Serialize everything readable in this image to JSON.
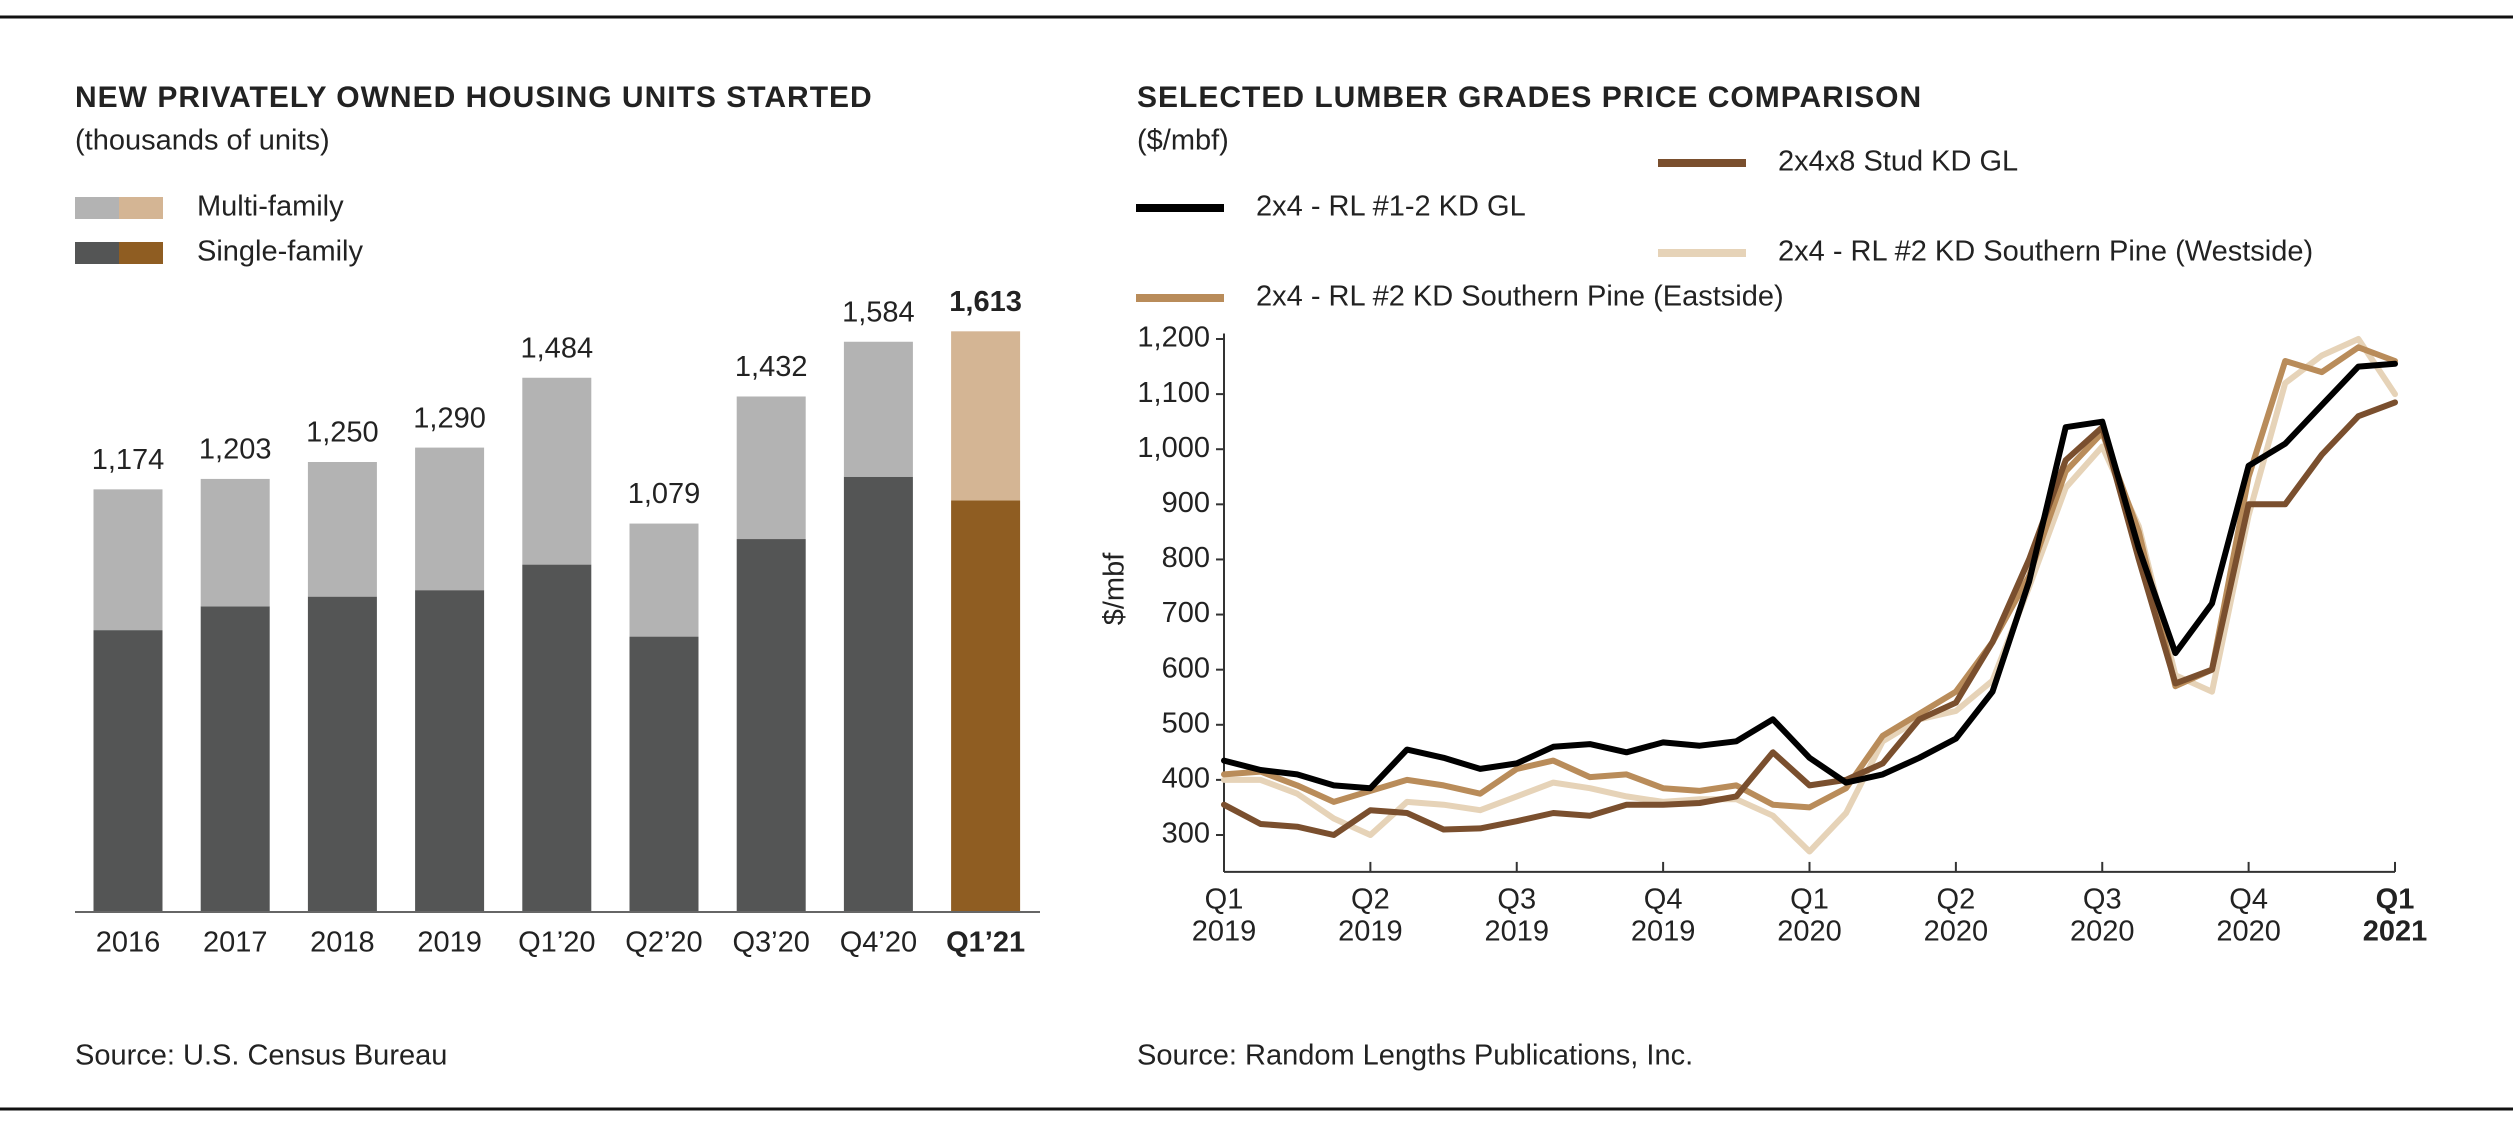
{
  "chart_data": [
    {
      "type": "bar",
      "stacked": true,
      "title": "NEW PRIVATELY OWNED HOUSING UNITS STARTED",
      "subtitle": "(thousands of units)",
      "source": "Source: U.S. Census Bureau",
      "categories": [
        "2016",
        "2017",
        "2018",
        "2019",
        "Q1’20",
        "Q2’20",
        "Q3’20",
        "Q4’20",
        "Q1’21"
      ],
      "highlight_index": 8,
      "series": [
        {
          "name": "Single-family",
          "color": "#545555",
          "highlight_color": "#8f5d22",
          "values": [
            783,
            849,
            876,
            894,
            965,
            765,
            1036,
            1209,
            1143
          ]
        },
        {
          "name": "Multi-family",
          "color": "#b3b3b3",
          "highlight_color": "#d4b594",
          "values": [
            391,
            354,
            374,
            396,
            519,
            314,
            396,
            375,
            470
          ]
        }
      ],
      "totals": [
        1174,
        1203,
        1250,
        1290,
        1484,
        1079,
        1432,
        1584,
        1613
      ],
      "total_labels": [
        "1,174",
        "1,203",
        "1,250",
        "1,290",
        "1,484",
        "1,079",
        "1,432",
        "1,584",
        "1,613"
      ]
    },
    {
      "type": "line",
      "title": "SELECTED LUMBER GRADES PRICE COMPARISON",
      "subtitle": "($/mbf)",
      "source": "Source: Random Lengths Publications, Inc.",
      "y_label": "$/mbf",
      "x": [
        0,
        0.25,
        0.5,
        0.75,
        1,
        1.25,
        1.5,
        1.75,
        2,
        2.25,
        2.5,
        2.75,
        3,
        3.25,
        3.5,
        3.75,
        4,
        4.25,
        4.5,
        4.75,
        5,
        5.25,
        5.5,
        5.75,
        6,
        6.25,
        6.5,
        6.75,
        7,
        7.25,
        7.5,
        7.75,
        8
      ],
      "xlim": [
        0,
        8
      ],
      "xticks": [
        {
          "value": 0,
          "label": "Q1",
          "sublabel": "2019"
        },
        {
          "value": 1,
          "label": "Q2",
          "sublabel": "2019"
        },
        {
          "value": 2,
          "label": "Q3",
          "sublabel": "2019"
        },
        {
          "value": 3,
          "label": "Q4",
          "sublabel": "2019"
        },
        {
          "value": 4,
          "label": "Q1",
          "sublabel": "2020"
        },
        {
          "value": 5,
          "label": "Q2",
          "sublabel": "2020"
        },
        {
          "value": 6,
          "label": "Q3",
          "sublabel": "2020"
        },
        {
          "value": 7,
          "label": "Q4",
          "sublabel": "2020"
        },
        {
          "value": 8,
          "label": "Q1",
          "sublabel": "2021"
        }
      ],
      "highlight_tick": 8,
      "ylim": [
        233,
        1210
      ],
      "yticks": [
        {
          "value": 300,
          "label": "300"
        },
        {
          "value": 400,
          "label": "400"
        },
        {
          "value": 500,
          "label": "500"
        },
        {
          "value": 600,
          "label": "600"
        },
        {
          "value": 700,
          "label": "700"
        },
        {
          "value": 800,
          "label": "800"
        },
        {
          "value": 900,
          "label": "900"
        },
        {
          "value": 1000,
          "label": "1,000"
        },
        {
          "value": 1100,
          "label": "1,100"
        },
        {
          "value": 1200,
          "label": "1,200"
        }
      ],
      "series": [
        {
          "name": "2x4 - RL #1-2 KD GL",
          "color": "#000000",
          "values": [
            435,
            418,
            410,
            390,
            385,
            455,
            440,
            420,
            430,
            460,
            465,
            450,
            468,
            462,
            470,
            510,
            440,
            395,
            410,
            440,
            475,
            560,
            760,
            1040,
            1050,
            820,
            630,
            720,
            970,
            1010,
            1080,
            1150,
            1155
          ]
        },
        {
          "name": "2x4x8 Stud KD GL",
          "color": "#7a4f2e",
          "values": [
            355,
            320,
            315,
            300,
            345,
            340,
            310,
            312,
            325,
            340,
            335,
            355,
            355,
            358,
            370,
            450,
            390,
            400,
            430,
            510,
            540,
            650,
            800,
            980,
            1040,
            800,
            575,
            600,
            900,
            900,
            990,
            1060,
            1085
          ]
        },
        {
          "name": "2x4 - RL #2 KD Southern Pine (Eastside)",
          "color": "#b98c5a",
          "values": [
            410,
            415,
            390,
            360,
            380,
            400,
            390,
            375,
            420,
            435,
            405,
            410,
            385,
            380,
            390,
            355,
            350,
            385,
            480,
            520,
            560,
            650,
            770,
            960,
            1030,
            850,
            570,
            600,
            950,
            1160,
            1140,
            1185,
            1160
          ]
        },
        {
          "name": "2x4 - RL #2 KD Southern Pine (Westside)",
          "color": "#e6d3b8",
          "values": [
            400,
            400,
            375,
            330,
            300,
            360,
            355,
            345,
            370,
            395,
            385,
            370,
            360,
            365,
            365,
            335,
            270,
            340,
            470,
            510,
            525,
            580,
            750,
            930,
            1005,
            860,
            590,
            560,
            880,
            1120,
            1170,
            1200,
            1100
          ]
        }
      ]
    }
  ]
}
